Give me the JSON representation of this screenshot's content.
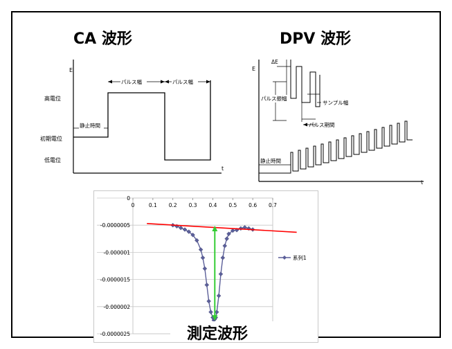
{
  "titles": {
    "ca": "CA 波形",
    "dpv": "DPV 波形",
    "measured": "測定波形"
  },
  "ca_diagram": {
    "axis_e": "E",
    "axis_t": "t",
    "level_high": "高電位",
    "level_initial": "初期電位",
    "level_low": "低電位",
    "rest_time": "静止時間",
    "pulse_width_1": "パルス幅",
    "pulse_width_2": "パルス幅"
  },
  "dpv_diagram": {
    "axis_e": "E",
    "axis_t": "t",
    "delta_e": "ΔE",
    "pulse_amplitude": "パルス振幅",
    "sample_width": "サンプル幅",
    "pulse_period": "パルス期間",
    "rest_time": "静止時間"
  },
  "chart_data": {
    "type": "scatter",
    "title": "",
    "xlabel": "",
    "ylabel": "",
    "xlim": [
      0,
      0.7
    ],
    "ylim": [
      -2.5e-06,
      0
    ],
    "x_ticks": [
      "0",
      "0.1",
      "0.2",
      "0.3",
      "0.4",
      "0.5",
      "0.6",
      "0.7"
    ],
    "y_ticks": [
      "0",
      "-0.0000005",
      "-0.000001",
      "-0.0000015",
      "-0.000002",
      "-0.0000025"
    ],
    "grid": "horizontal",
    "legend": "right",
    "series": [
      {
        "name": "系列1",
        "color": "#5b5f99",
        "x": [
          0.2,
          0.22,
          0.24,
          0.26,
          0.28,
          0.3,
          0.32,
          0.34,
          0.35,
          0.36,
          0.37,
          0.38,
          0.39,
          0.4,
          0.405,
          0.41,
          0.415,
          0.42,
          0.43,
          0.44,
          0.45,
          0.46,
          0.47,
          0.48,
          0.5,
          0.52,
          0.54,
          0.56,
          0.58,
          0.6
        ],
        "y": [
          -5e-07,
          -5.2e-07,
          -5.5e-07,
          -5.8e-07,
          -6.2e-07,
          -6.8e-07,
          -7.8e-07,
          -9.5e-07,
          -1.1e-06,
          -1.3e-06,
          -1.6e-06,
          -1.9e-06,
          -2.1e-06,
          -2.2e-06,
          -2.25e-06,
          -2.23e-06,
          -2.2e-06,
          -2.1e-06,
          -1.8e-06,
          -1.4e-06,
          -1.1e-06,
          -8.8e-07,
          -7.5e-07,
          -6.6e-07,
          -6e-07,
          -5.9e-07,
          -5.6e-07,
          -5.4e-07,
          -5.6e-07,
          -5.8e-07
        ]
      }
    ],
    "annotations": {
      "baseline_color": "#ff0000",
      "baseline_x": [
        0.07,
        0.82
      ],
      "baseline_y": [
        -4.7e-07,
        -6.3e-07
      ],
      "peak_arrow_color": "#33cc33",
      "peak_arrow_x": 0.41,
      "peak_arrow_y": [
        -5.1e-07,
        -2.26e-06
      ]
    }
  }
}
